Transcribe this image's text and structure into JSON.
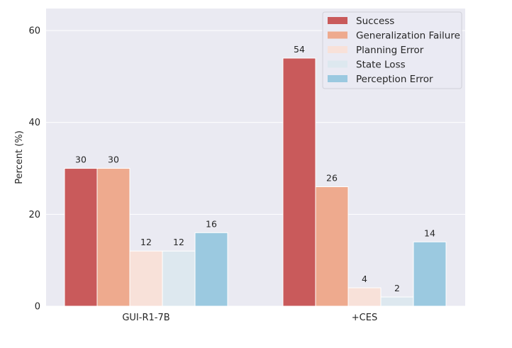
{
  "chart_data": {
    "type": "bar",
    "title": "",
    "xlabel": "",
    "ylabel": "Percent (%)",
    "ylim": [
      0,
      64.8
    ],
    "yticks": [
      0,
      20,
      40,
      60
    ],
    "grid": true,
    "legend_position": "top-right",
    "categories": [
      "GUI-R1-7B",
      "+CES"
    ],
    "series": [
      {
        "name": "Success",
        "color": "#c95a5b",
        "values": [
          30,
          54
        ]
      },
      {
        "name": "Generalization Failure",
        "color": "#eeaa8e",
        "values": [
          30,
          26
        ]
      },
      {
        "name": "Planning Error",
        "color": "#f8e1d9",
        "values": [
          12,
          4
        ]
      },
      {
        "name": "State Loss",
        "color": "#dde8ef",
        "values": [
          12,
          2
        ]
      },
      {
        "name": "Perception Error",
        "color": "#9bc9e0",
        "values": [
          16,
          14
        ]
      }
    ]
  }
}
